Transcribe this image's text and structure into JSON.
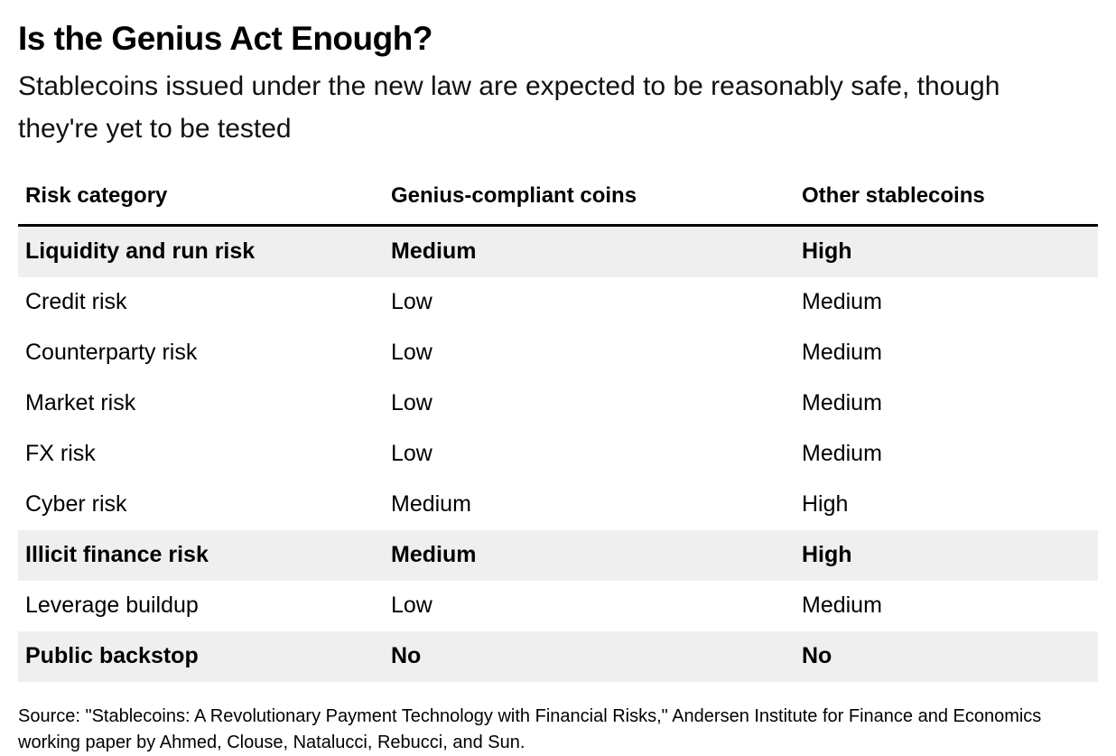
{
  "header": {
    "title": "Is the Genius Act Enough?",
    "subtitle": "Stablecoins issued under the new law are expected to be reasonably safe, though they're yet to be tested"
  },
  "chart_data": {
    "type": "table",
    "title": "Is the Genius Act Enough?",
    "subtitle": "Stablecoins issued under the new law are expected to be reasonably safe, though they're yet to be tested",
    "columns": [
      "Risk category",
      "Genius-compliant coins",
      "Other stablecoins"
    ],
    "rows": [
      {
        "cells": [
          "Liquidity and run risk",
          "Medium",
          "High"
        ],
        "bold": true
      },
      {
        "cells": [
          "Credit risk",
          "Low",
          "Medium"
        ],
        "bold": false
      },
      {
        "cells": [
          "Counterparty risk",
          "Low",
          "Medium"
        ],
        "bold": false
      },
      {
        "cells": [
          "Market risk",
          "Low",
          "Medium"
        ],
        "bold": false
      },
      {
        "cells": [
          "FX risk",
          "Low",
          "Medium"
        ],
        "bold": false
      },
      {
        "cells": [
          "Cyber risk",
          "Medium",
          "High"
        ],
        "bold": false
      },
      {
        "cells": [
          "Illicit finance risk",
          "Medium",
          "High"
        ],
        "bold": true
      },
      {
        "cells": [
          "Leverage buildup",
          "Low",
          "Medium"
        ],
        "bold": false
      },
      {
        "cells": [
          "Public backstop",
          "No",
          "No"
        ],
        "bold": true
      }
    ],
    "highlighted_row_indexes": [
      0,
      6,
      8
    ],
    "legend_position": "none",
    "grid": "horizontal-bands"
  },
  "footer": {
    "source": "Source: \"Stablecoins: A Revolutionary Payment Technology with Financial Risks,\" Andersen Institute for Finance and Economics working paper by Ahmed, Clouse, Natalucci, Rebucci, and Sun."
  },
  "colors": {
    "background": "#ffffff",
    "text": "#000000",
    "row_highlight": "#efefef",
    "header_rule": "#000000"
  }
}
